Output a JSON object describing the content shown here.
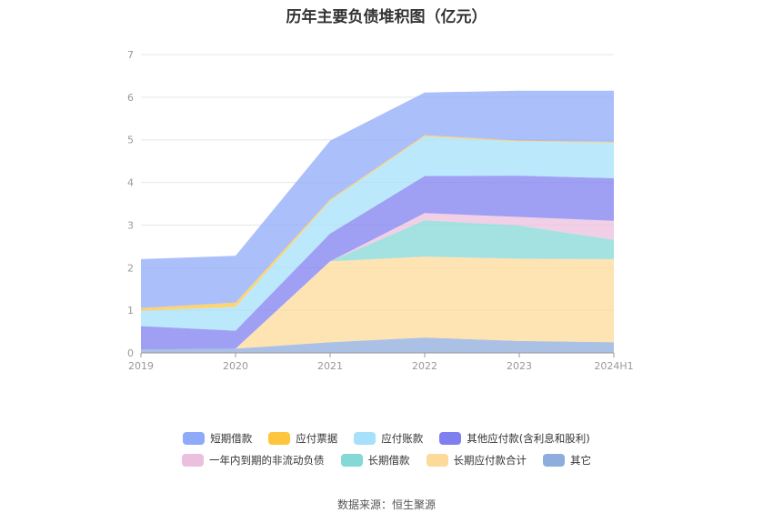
{
  "title": "历年主要负债堆积图（亿元）",
  "source": "数据来源：恒生聚源",
  "chart_data": {
    "type": "area",
    "stacked": true,
    "title": "历年主要负债堆积图（亿元）",
    "categories": [
      "2019",
      "2020",
      "2021",
      "2022",
      "2023",
      "2024H1"
    ],
    "ylim": [
      0,
      7
    ],
    "yticks": [
      "0",
      "1",
      "2",
      "3",
      "4",
      "5",
      "6",
      "7"
    ],
    "grid": true,
    "legend_position": "bottom",
    "series": [
      {
        "name": "其它",
        "color": "#8eacdc",
        "values": [
          0.08,
          0.1,
          0.25,
          0.36,
          0.28,
          0.25
        ]
      },
      {
        "name": "长期应付款合计",
        "color": "#fdd99a",
        "values": [
          0.0,
          0.0,
          1.9,
          1.9,
          1.93,
          1.95
        ]
      },
      {
        "name": "长期借款",
        "color": "#84d8d6",
        "values": [
          0.0,
          0.0,
          0.0,
          0.85,
          0.78,
          0.45
        ]
      },
      {
        "name": "一年内到期的非流动负债",
        "color": "#ecbfdf",
        "values": [
          0.0,
          0.0,
          0.0,
          0.17,
          0.2,
          0.45
        ]
      },
      {
        "name": "其他应付款(含利息和股利)",
        "color": "#7f7ff0",
        "values": [
          0.55,
          0.42,
          0.65,
          0.87,
          0.97,
          1.0
        ]
      },
      {
        "name": "应付账款",
        "color": "#a6e0fa",
        "values": [
          0.36,
          0.56,
          0.77,
          0.93,
          0.8,
          0.83
        ]
      },
      {
        "name": "应付票据",
        "color": "#ffc53d",
        "values": [
          0.06,
          0.1,
          0.03,
          0.03,
          0.02,
          0.02
        ]
      },
      {
        "name": "短期借款",
        "color": "#8faaf8",
        "values": [
          1.15,
          1.1,
          1.38,
          1.0,
          1.17,
          1.2
        ]
      }
    ]
  },
  "legend": {
    "row1": [
      {
        "label": "短期借款",
        "color": "#8faaf8"
      },
      {
        "label": "应付票据",
        "color": "#ffc53d"
      },
      {
        "label": "应付账款",
        "color": "#a6e0fa"
      },
      {
        "label": "其他应付款(含利息和股利)",
        "color": "#7f7ff0"
      }
    ],
    "row2": [
      {
        "label": "一年内到期的非流动负债",
        "color": "#ecbfdf"
      },
      {
        "label": "长期借款",
        "color": "#84d8d6"
      },
      {
        "label": "长期应付款合计",
        "color": "#fdd99a"
      },
      {
        "label": "其它",
        "color": "#8eacdc"
      }
    ]
  }
}
